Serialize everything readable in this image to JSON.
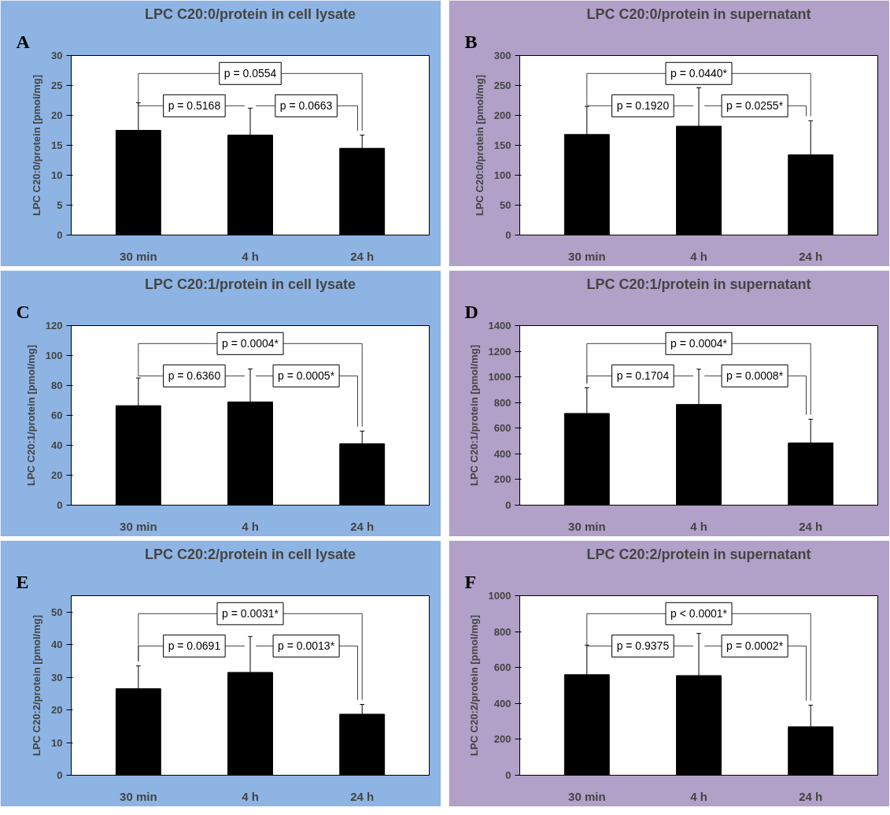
{
  "chart_data": [
    {
      "type": "bar",
      "title": "LPC C20:0/protein in cell lysate",
      "ylabel": "LPC C20:0/protein [pmol/mg]",
      "categories": [
        "30 min",
        "4 h",
        "24 h"
      ],
      "values": [
        17.5,
        16.7,
        14.5
      ],
      "errors": [
        [
          17.5,
          22.1
        ],
        [
          16.7,
          21.2
        ],
        [
          14.5,
          16.7
        ]
      ],
      "color": "#000000",
      "ylim": [
        0,
        30
      ],
      "yticks": [
        0,
        5,
        10,
        15,
        20,
        25,
        30
      ],
      "grid": false,
      "annotations": [
        "A",
        "p = 0.0554",
        "p = 0.5168",
        "p = 0.0663"
      ]
    },
    {
      "type": "bar",
      "title": "LPC C20:0/protein in supernatant",
      "ylabel": "LPC C20:0/protein [pmol/mg]",
      "categories": [
        "30 min",
        "4 h",
        "24 h"
      ],
      "values": [
        168,
        182,
        134
      ],
      "errors": [
        [
          168,
          215
        ],
        [
          182,
          246
        ],
        [
          134,
          191
        ]
      ],
      "color": "#000000",
      "ylim": [
        0,
        300
      ],
      "yticks": [
        0,
        50,
        100,
        150,
        200,
        250,
        300
      ],
      "grid": false,
      "annotations": [
        "B",
        "p = 0.0440*",
        "p = 0.1920",
        "p = 0.0255*"
      ]
    },
    {
      "type": "bar",
      "title": "LPC C20:1/protein in cell lysate",
      "ylabel": "LPC C20:1/protein [pmol/mg]",
      "categories": [
        "30 min",
        "4 h",
        "24 h"
      ],
      "values": [
        66.5,
        69,
        41
      ],
      "errors": [
        [
          66.5,
          85
        ],
        [
          69,
          91
        ],
        [
          41,
          49.5
        ]
      ],
      "color": "#000000",
      "ylim": [
        0,
        120
      ],
      "yticks": [
        0,
        20,
        40,
        60,
        80,
        100,
        120
      ],
      "grid": false,
      "annotations": [
        "C",
        "p = 0.0004*",
        "p = 0.6360",
        "p = 0.0005*"
      ]
    },
    {
      "type": "bar",
      "title": "LPC C20:1/protein in supernatant",
      "ylabel": "LPC C20:1/protein [pmol/mg]",
      "categories": [
        "30 min",
        "4 h",
        "24 h"
      ],
      "values": [
        715,
        785,
        485
      ],
      "errors": [
        [
          715,
          915
        ],
        [
          785,
          1060
        ],
        [
          485,
          670
        ]
      ],
      "color": "#000000",
      "ylim": [
        0,
        1400
      ],
      "yticks": [
        0,
        200,
        400,
        600,
        800,
        1000,
        1200,
        1400
      ],
      "grid": false,
      "annotations": [
        "D",
        "p = 0.0004*",
        "p = 0.1704",
        "p = 0.0008*"
      ]
    },
    {
      "type": "bar",
      "title": "LPC C20:2/protein in cell lysate",
      "ylabel": "LPC C20:2/protein [pmol/mg]",
      "categories": [
        "30 min",
        "4 h",
        "24 h"
      ],
      "values": [
        26.5,
        31.5,
        18.7
      ],
      "errors": [
        [
          26.5,
          33.5
        ],
        [
          31.5,
          42.5
        ],
        [
          18.7,
          21.7
        ]
      ],
      "color": "#000000",
      "ylim": [
        0,
        55
      ],
      "yticks": [
        0,
        10,
        20,
        30,
        40,
        50
      ],
      "grid": false,
      "annotations": [
        "E",
        "p = 0.0031*",
        "p = 0.0691",
        "p = 0.0013*"
      ]
    },
    {
      "type": "bar",
      "title": "LPC C20:2/protein in supernatant",
      "ylabel": "LPC C20:2/protein [pmol/mg]",
      "categories": [
        "30 min",
        "4 h",
        "24 h"
      ],
      "values": [
        560,
        555,
        270
      ],
      "errors": [
        [
          560,
          725
        ],
        [
          555,
          790
        ],
        [
          270,
          390
        ]
      ],
      "color": "#000000",
      "ylim": [
        0,
        1000
      ],
      "yticks": [
        0,
        200,
        400,
        600,
        800,
        1000
      ],
      "grid": false,
      "annotations": [
        "F",
        "p < 0.0001*",
        "p = 0.9375",
        "p = 0.0002*"
      ]
    }
  ]
}
